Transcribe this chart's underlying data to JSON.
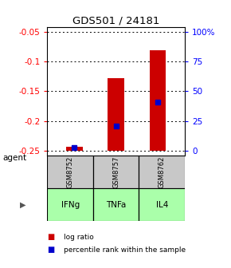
{
  "title": "GDS501 / 24181",
  "samples": [
    "GSM8752",
    "GSM8757",
    "GSM8762"
  ],
  "agents": [
    "IFNg",
    "TNFa",
    "IL4"
  ],
  "bar_bottoms": [
    -0.25,
    -0.25,
    -0.25
  ],
  "bar_tops": [
    -0.243,
    -0.128,
    -0.082
  ],
  "percentile_values": [
    -0.245,
    -0.208,
    -0.168
  ],
  "ylim": [
    -0.258,
    -0.042
  ],
  "yticks_left": [
    -0.25,
    -0.2,
    -0.15,
    -0.1,
    -0.05
  ],
  "ytick_labels_left": [
    "-0.25",
    "-0.2",
    "-0.15",
    "-0.1",
    "-0.05"
  ],
  "yticks_right_pos": [
    -0.25,
    -0.2,
    -0.15,
    -0.1,
    -0.05
  ],
  "ytick_labels_right": [
    "0",
    "25",
    "50",
    "75",
    "100%"
  ],
  "bar_color": "#cc0000",
  "percentile_color": "#0000cc",
  "sample_box_color": "#c8c8c8",
  "agent_box_color": "#aaffaa",
  "legend_items": [
    {
      "label": "log ratio",
      "color": "#cc0000"
    },
    {
      "label": "percentile rank within the sample",
      "color": "#0000cc"
    }
  ]
}
